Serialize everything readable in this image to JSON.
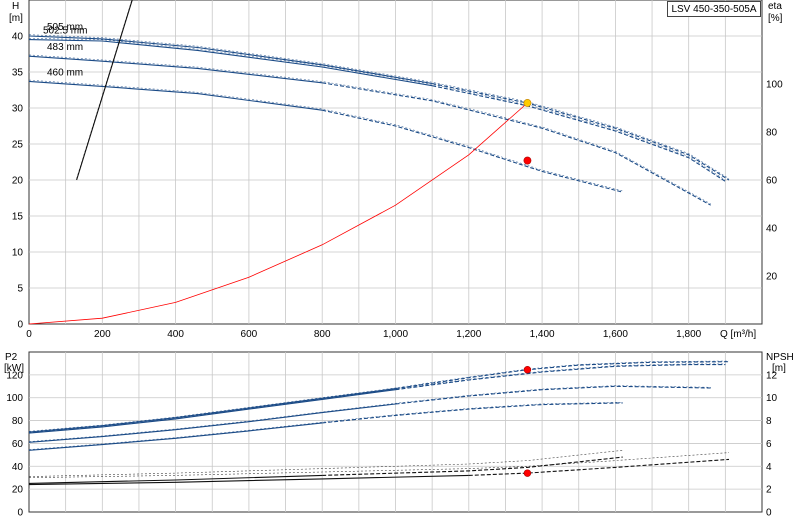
{
  "model_label": "LSV 450-350-505A",
  "colors": {
    "grid": "#c8c8c8",
    "curve_blue": "#1a4a86",
    "curve_black": "#111111",
    "system_red": "#ff0000",
    "duty_point": "#ff0000",
    "duty_point_yellow": "#ffcc00"
  },
  "chart_data": [
    {
      "type": "line",
      "panel": "upper",
      "ylabel_left": "H",
      "ylabel_left_unit": "[m]",
      "ylabel_right": "eta",
      "ylabel_right_unit": "[%]",
      "xlabel": "Q [m³/h]",
      "xlim": [
        0,
        2000
      ],
      "ylim": [
        0,
        45
      ],
      "ylim_right": [
        0,
        135
      ],
      "x_ticks": [
        "0",
        "200",
        "400",
        "600",
        "800",
        "1,000",
        "1,200",
        "1,400",
        "1,600",
        "1,800"
      ],
      "y_ticks": [
        "0",
        "5",
        "10",
        "15",
        "20",
        "25",
        "30",
        "35",
        "40"
      ],
      "y_right_ticks": [
        "20",
        "40",
        "60",
        "80",
        "100"
      ],
      "grid": true,
      "series": [
        {
          "name": "505 mm",
          "kind": "head",
          "style": "solid-then-dashed",
          "x": [
            0,
            200,
            460,
            800,
            1100,
            1360,
            1600,
            1800,
            1910
          ],
          "y": [
            40.0,
            39.6,
            38.4,
            36.0,
            33.4,
            30.7,
            27.2,
            23.5,
            20.0
          ]
        },
        {
          "name": "502.5 mm",
          "kind": "head",
          "style": "solid-then-dashed",
          "x": [
            0,
            200,
            460,
            800,
            1100,
            1360,
            1600,
            1800,
            1900
          ],
          "y": [
            39.5,
            39.3,
            38.0,
            35.7,
            33.1,
            30.3,
            26.8,
            23.1,
            19.8
          ]
        },
        {
          "name": "483 mm",
          "kind": "head",
          "style": "solid-then-dashed",
          "x": [
            0,
            200,
            460,
            800,
            1100,
            1400,
            1600,
            1860
          ],
          "y": [
            37.2,
            36.5,
            35.5,
            33.5,
            31.0,
            27.2,
            23.8,
            16.5
          ]
        },
        {
          "name": "460 mm",
          "kind": "head",
          "style": "solid-then-dashed",
          "x": [
            0,
            200,
            460,
            800,
            1000,
            1200,
            1400,
            1620
          ],
          "y": [
            33.7,
            33.0,
            32.0,
            29.7,
            27.5,
            24.5,
            21.2,
            18.3
          ]
        },
        {
          "name": "",
          "kind": "system",
          "style": "solid",
          "x": [
            0,
            200,
            400,
            600,
            800,
            1000,
            1200,
            1360
          ],
          "y": [
            0,
            0.8,
            3.0,
            6.5,
            11.0,
            16.5,
            23.5,
            30.7
          ]
        },
        {
          "name": "",
          "kind": "efficiency",
          "style": "solid-then-dashed",
          "x": [
            130,
            300,
            500,
            700,
            900,
            1100,
            1300,
            1450,
            1600,
            1800,
            1910
          ],
          "y": [
            20.0,
            48.0,
            63.0,
            72.5,
            79.0,
            83.0,
            85.0,
            85.5,
            85.0,
            81.5,
            79.0
          ]
        }
      ],
      "duty_points": [
        {
          "x": 1360,
          "y": 30.7,
          "marker": "yellow"
        },
        {
          "x": 1360,
          "y": 22.7,
          "marker": "red"
        }
      ]
    },
    {
      "type": "line",
      "panel": "lower",
      "ylabel_left": "P2",
      "ylabel_left_unit": "[kW]",
      "ylabel_right": "NPSH",
      "ylabel_right_unit": "[m]",
      "xlim": [
        0,
        2000
      ],
      "ylim": [
        0,
        140
      ],
      "ylim_right": [
        0,
        14
      ],
      "y_ticks": [
        "0",
        "20",
        "40",
        "60",
        "80",
        "100",
        "120"
      ],
      "y_right_ticks": [
        "0",
        "2",
        "4",
        "6",
        "8",
        "10",
        "12"
      ],
      "grid": true,
      "series": [
        {
          "name": "505 mm",
          "kind": "power",
          "style": "solid-then-dashed",
          "x": [
            0,
            200,
            400,
            600,
            800,
            1000,
            1200,
            1360,
            1500,
            1700,
            1910
          ],
          "y": [
            70.0,
            75.5,
            82.5,
            91.0,
            99.5,
            108.0,
            117.5,
            124.5,
            128.5,
            131.0,
            131.5
          ]
        },
        {
          "name": "502.5 mm",
          "kind": "power",
          "style": "solid-then-dashed",
          "x": [
            0,
            200,
            400,
            600,
            800,
            1000,
            1200,
            1400,
            1600,
            1800,
            1900
          ],
          "y": [
            69.0,
            74.5,
            81.5,
            90.0,
            98.5,
            107.0,
            115.5,
            122.5,
            127.5,
            129.0,
            129.0
          ]
        },
        {
          "name": "483 mm",
          "kind": "power",
          "style": "solid-then-dashed",
          "x": [
            0,
            200,
            400,
            600,
            800,
            1000,
            1200,
            1400,
            1600,
            1860
          ],
          "y": [
            61.0,
            66.0,
            72.0,
            79.0,
            87.0,
            94.5,
            101.5,
            107.0,
            110.0,
            108.5
          ]
        },
        {
          "name": "460 mm",
          "kind": "power",
          "style": "solid-then-dashed",
          "x": [
            0,
            200,
            400,
            600,
            800,
            1000,
            1200,
            1400,
            1620
          ],
          "y": [
            54.0,
            59.0,
            64.5,
            71.0,
            78.0,
            84.5,
            90.0,
            94.0,
            95.5
          ]
        },
        {
          "name": "",
          "kind": "npsh",
          "style": "solid-then-dashed",
          "x": [
            0,
            400,
            800,
            1200,
            1360,
            1620
          ],
          "y": [
            2.5,
            2.8,
            3.2,
            3.6,
            3.9,
            4.8
          ]
        },
        {
          "name": "",
          "kind": "npsh",
          "style": "solid-then-dashed",
          "x": [
            0,
            400,
            800,
            1200,
            1360,
            1600,
            1910
          ],
          "y": [
            2.4,
            2.6,
            2.9,
            3.2,
            3.4,
            3.9,
            4.6
          ]
        }
      ],
      "duty_points": [
        {
          "x": 1360,
          "y": 124.5,
          "axis": "left",
          "marker": "red"
        },
        {
          "x": 1360,
          "y": 3.4,
          "axis": "right",
          "marker": "red"
        }
      ]
    }
  ]
}
